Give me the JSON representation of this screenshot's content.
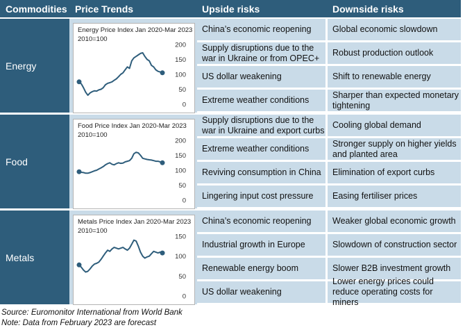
{
  "header": {
    "commodities": "Commodities",
    "price_trends": "Price Trends",
    "upside": "Upside risks",
    "downside": "Downside risks"
  },
  "sections": [
    {
      "name": "Energy",
      "chart": {
        "title": "Energy Price Index Jan 2020-Mar 2023",
        "base": "2010=100",
        "yticks": [
          "200",
          "150",
          "100",
          "50",
          "0"
        ],
        "ymax": 200,
        "points": [
          75,
          68,
          55,
          40,
          30,
          38,
          42,
          45,
          44,
          48,
          50,
          55,
          65,
          70,
          72,
          75,
          80,
          85,
          92,
          100,
          105,
          115,
          125,
          120,
          145,
          155,
          160,
          165,
          170,
          172,
          160,
          150,
          145,
          130,
          125,
          115,
          110,
          108,
          105
        ]
      },
      "upside": [
        "China’s economic reopening",
        "Supply disruptions due to the war in Ukraine or from OPEC+",
        "US dollar weakening",
        "Extreme weather conditions"
      ],
      "downside": [
        "Global economic slowdown",
        "Robust production outlook",
        "Shift to renewable energy",
        "Sharper than expected monetary tightening"
      ]
    },
    {
      "name": "Food",
      "chart": {
        "title": "Food Price Index Jan 2020-Mar 2023",
        "base": "2010=100",
        "yticks": [
          "200",
          "150",
          "100",
          "50",
          "0"
        ],
        "ymax": 200,
        "points": [
          95,
          93,
          92,
          90,
          90,
          92,
          95,
          98,
          100,
          104,
          108,
          112,
          118,
          122,
          125,
          120,
          118,
          122,
          125,
          123,
          124,
          128,
          130,
          132,
          140,
          155,
          160,
          158,
          150,
          140,
          138,
          136,
          135,
          134,
          132,
          130,
          130,
          128,
          125
        ]
      },
      "upside": [
        "Supply disruptions due to the war in Ukraine and export curbs",
        "Extreme weather conditions",
        "Reviving consumption in China",
        "Lingering input cost pressure"
      ],
      "downside": [
        "Cooling global demand",
        "Stronger supply on higher yields and planted area",
        "Elimination of export curbs",
        "Easing fertiliser prices"
      ]
    },
    {
      "name": "Metals",
      "chart": {
        "title": "Metals Price Index Jan 2020-Mar 2023",
        "base": "2010=100",
        "yticks": [
          "150",
          "100",
          "50",
          "0"
        ],
        "ymax": 150,
        "points": [
          78,
          72,
          65,
          60,
          62,
          68,
          75,
          80,
          82,
          85,
          92,
          100,
          108,
          115,
          112,
          118,
          122,
          120,
          118,
          120,
          122,
          118,
          115,
          120,
          130,
          140,
          138,
          125,
          110,
          100,
          95,
          98,
          100,
          106,
          112,
          110,
          108,
          110,
          108
        ]
      },
      "upside": [
        "China’s economic reopening",
        "Industrial growth in Europe",
        "Renewable energy boom",
        "US dollar weakening"
      ],
      "downside": [
        "Weaker global economic growth",
        "Slowdown of construction sector",
        "Slower B2B investment growth",
        "Lower energy prices could reduce operating costs for miners"
      ]
    }
  ],
  "footer": {
    "source": "Source: Euromonitor International from World Bank",
    "note": "Note: Data from February 2023 are forecast"
  },
  "colors": {
    "header": "#2e5d7b",
    "cell": "#c9dbe8",
    "line": "#2e5d7b"
  }
}
